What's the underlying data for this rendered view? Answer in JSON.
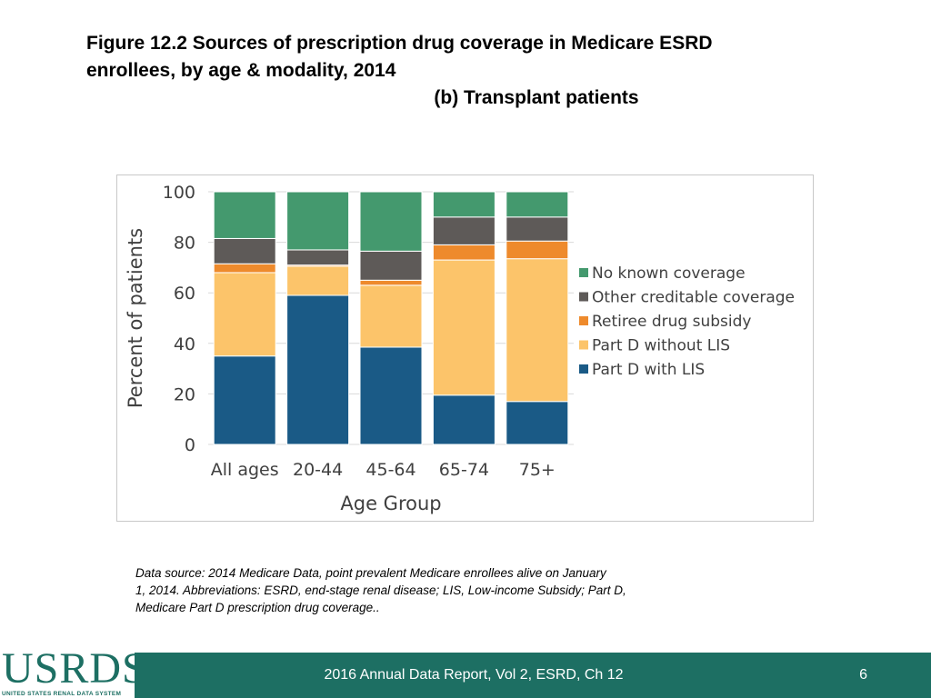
{
  "header": {
    "title_line1": "Figure 12.2  Sources of prescription drug coverage in Medicare ESRD",
    "title_line2": "enrollees, by age & modality, 2014",
    "subtitle": "(b) Transplant patients"
  },
  "chart_data": {
    "type": "bar",
    "stacked": true,
    "title": "",
    "xlabel": "Age Group",
    "ylabel": "Percent of patients",
    "ylim": [
      0,
      100
    ],
    "yticks": [
      0,
      20,
      40,
      60,
      80,
      100
    ],
    "categories": [
      "All ages",
      "20-44",
      "45-64",
      "65-74",
      "75+"
    ],
    "series": [
      {
        "name": "Part D with LIS",
        "color": "#1a5a86",
        "values": [
          35,
          59,
          38.5,
          19.5,
          17
        ]
      },
      {
        "name": "Part D without LIS",
        "color": "#fcc46a",
        "values": [
          33,
          11.5,
          24.5,
          53.5,
          56.5
        ]
      },
      {
        "name": "Retiree drug subsidy",
        "color": "#ee8a2c",
        "values": [
          3.5,
          0.5,
          2,
          6,
          7
        ]
      },
      {
        "name": "Other creditable coverage",
        "color": "#5e5a58",
        "values": [
          10,
          6,
          11.5,
          11,
          9.5
        ]
      },
      {
        "name": "No known coverage",
        "color": "#44996e",
        "values": [
          18.5,
          23,
          23.5,
          10,
          10
        ]
      }
    ],
    "legend_position": "right",
    "grid": true
  },
  "footnote": {
    "line1": "Data source: 2014 Medicare Data, point prevalent Medicare enrollees alive on January",
    "line2": "1, 2014. Abbreviations: ESRD, end-stage renal disease; LIS, Low-income Subsidy; Part D,",
    "line3": "Medicare Part D prescription drug coverage.."
  },
  "footer": {
    "logo_text": "USRDS",
    "logo_subtext": "UNITED STATES RENAL DATA SYSTEM",
    "report_label": "2016 Annual Data Report, Vol 2, ESRD, Ch 12",
    "page_number": "6",
    "brand_color": "#1d6f63"
  }
}
